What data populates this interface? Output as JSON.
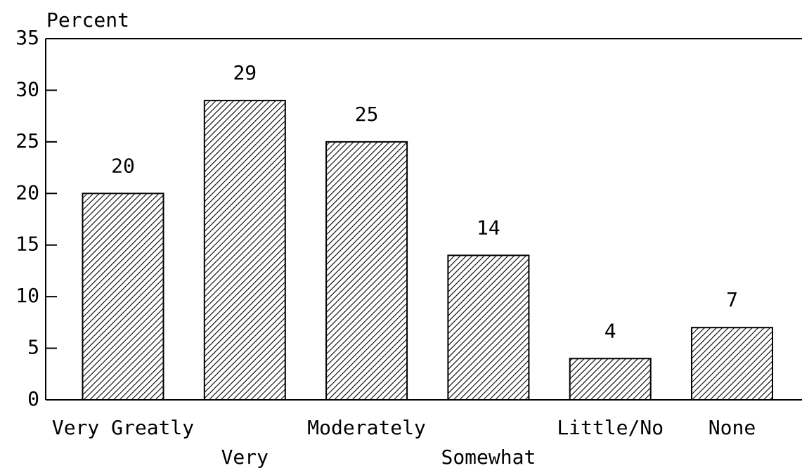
{
  "chart_data": {
    "type": "bar",
    "y_label": "Percent",
    "categories": [
      "Very Greatly",
      "Very",
      "Moderately",
      "Somewhat",
      "Little/No",
      "None"
    ],
    "values": [
      20,
      29,
      25,
      14,
      4,
      7
    ],
    "color": "#000000",
    "ylim": [
      0,
      35
    ],
    "yticks": [
      0,
      5,
      10,
      15,
      20,
      25,
      30,
      35
    ]
  }
}
